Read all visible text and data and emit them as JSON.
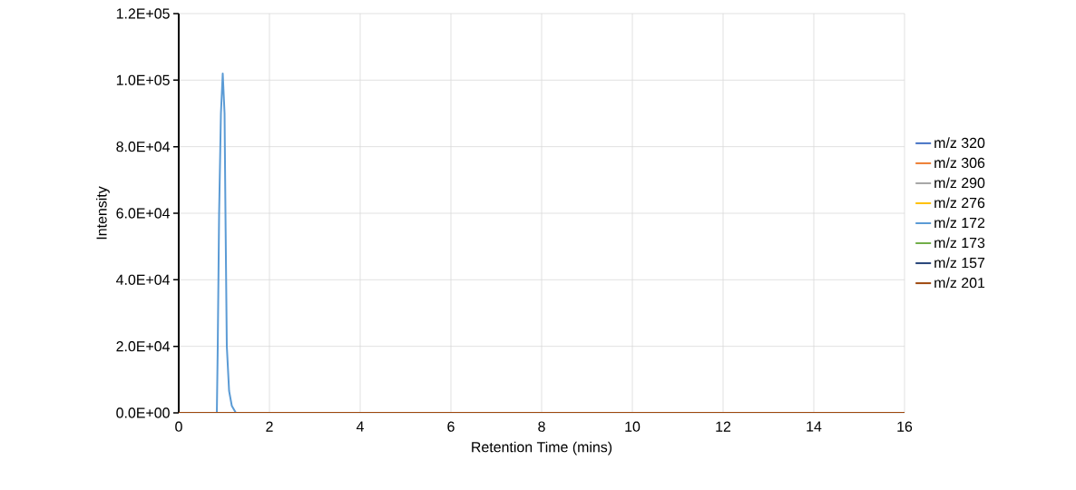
{
  "chart_data": {
    "type": "line",
    "xlabel": "Retention Time (mins)",
    "ylabel": "Intensity",
    "xlim": [
      0,
      16
    ],
    "xticks": [
      0,
      2,
      4,
      6,
      8,
      10,
      12,
      14,
      16
    ],
    "ylim": [
      0,
      120000
    ],
    "yticks": [
      {
        "value": 0,
        "label": "0.0E+00"
      },
      {
        "value": 20000,
        "label": "2.0E+04"
      },
      {
        "value": 40000,
        "label": "4.0E+04"
      },
      {
        "value": 60000,
        "label": "6.0E+04"
      },
      {
        "value": 80000,
        "label": "8.0E+04"
      },
      {
        "value": 100000,
        "label": "1.0E+05"
      },
      {
        "value": 120000,
        "label": "1.2E+05"
      }
    ],
    "grid": true,
    "legend": "right",
    "series": [
      {
        "name": "m/z 320",
        "color": "#4472c4"
      },
      {
        "name": "m/z 306",
        "color": "#ed7d31"
      },
      {
        "name": "m/z 290",
        "color": "#a5a5a5"
      },
      {
        "name": "m/z 276",
        "color": "#ffc000"
      },
      {
        "name": "m/z 172",
        "color": "#5b9bd5",
        "x": [
          0.84,
          0.86,
          0.89,
          0.93,
          0.97,
          1.01,
          1.03,
          1.06,
          1.11,
          1.17,
          1.26
        ],
        "values": [
          0,
          20000,
          60000,
          90000,
          102000,
          90000,
          60000,
          20000,
          6600,
          2100,
          0
        ]
      },
      {
        "name": "m/z 173",
        "color": "#70ad47"
      },
      {
        "name": "m/z 157",
        "color": "#264478"
      },
      {
        "name": "m/z 201",
        "color": "#9e480e",
        "x": [
          0,
          16
        ],
        "values": [
          0,
          0
        ]
      }
    ]
  }
}
